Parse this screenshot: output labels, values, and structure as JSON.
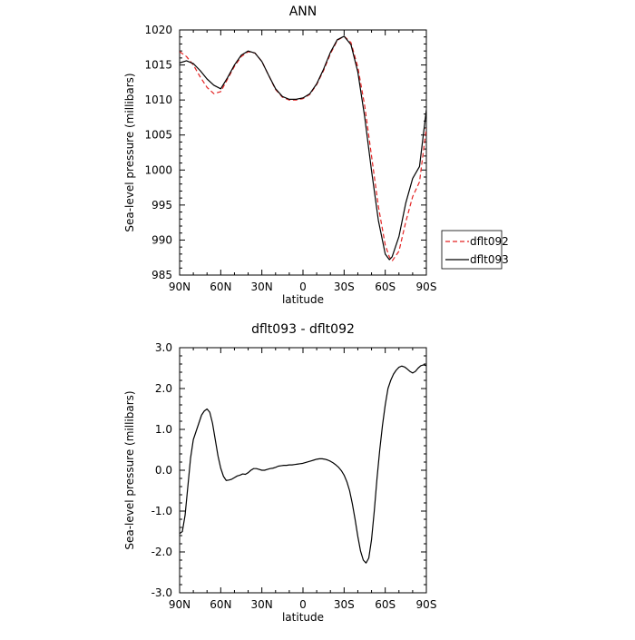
{
  "chart_data": [
    {
      "type": "line",
      "title": "ANN",
      "xlabel": "latitude",
      "ylabel": "Sea-level pressure (millibars)",
      "xlim": [
        90,
        -90
      ],
      "ylim": [
        985,
        1020
      ],
      "xticks": [
        90,
        60,
        30,
        0,
        -30,
        -60,
        -90
      ],
      "xtick_labels": [
        "90N",
        "60N",
        "30N",
        "0",
        "30S",
        "60S",
        "90S"
      ],
      "yticks": [
        985,
        990,
        995,
        1000,
        1005,
        1010,
        1015,
        1020
      ],
      "ytick_labels": [
        "985",
        "990",
        "995",
        "1000",
        "1005",
        "1010",
        "1015",
        "1020"
      ],
      "legend_position": "outside-right",
      "series": [
        {
          "name": "dflt092",
          "color": "#e32222",
          "style": "dashed",
          "x": [
            90,
            85,
            80,
            75,
            70,
            65,
            60,
            55,
            50,
            45,
            40,
            35,
            30,
            25,
            20,
            15,
            10,
            5,
            0,
            -5,
            -10,
            -15,
            -20,
            -25,
            -30,
            -35,
            -40,
            -45,
            -50,
            -55,
            -60,
            -63,
            -65,
            -70,
            -75,
            -80,
            -85,
            -90
          ],
          "y": [
            1016.9,
            1016.2,
            1015.0,
            1013.3,
            1011.8,
            1010.9,
            1011.2,
            1013.0,
            1014.8,
            1016.2,
            1016.9,
            1016.7,
            1015.5,
            1013.5,
            1011.5,
            1010.4,
            1010.0,
            1010.0,
            1010.2,
            1010.8,
            1012.2,
            1014.2,
            1016.6,
            1018.5,
            1019.1,
            1018.2,
            1014.7,
            1009.2,
            1002.0,
            994.8,
            989.3,
            987.6,
            987.0,
            988.4,
            992.6,
            996.2,
            998.3,
            1006.0
          ]
        },
        {
          "name": "dflt093",
          "color": "#000000",
          "style": "solid",
          "x": [
            90,
            85,
            80,
            75,
            70,
            65,
            60,
            55,
            50,
            45,
            40,
            35,
            30,
            25,
            20,
            15,
            10,
            5,
            0,
            -5,
            -10,
            -15,
            -20,
            -25,
            -30,
            -35,
            -40,
            -45,
            -50,
            -55,
            -60,
            -63,
            -65,
            -70,
            -75,
            -80,
            -85,
            -90
          ],
          "y": [
            1015.3,
            1015.6,
            1015.2,
            1014.2,
            1013.0,
            1012.1,
            1011.6,
            1013.2,
            1015.0,
            1016.4,
            1017.0,
            1016.7,
            1015.5,
            1013.5,
            1011.6,
            1010.5,
            1010.1,
            1010.1,
            1010.3,
            1010.9,
            1012.3,
            1014.4,
            1016.8,
            1018.6,
            1019.1,
            1017.9,
            1014.0,
            1007.6,
            999.9,
            992.8,
            988.0,
            987.2,
            987.6,
            990.5,
            995.3,
            998.8,
            1000.5,
            1008.6
          ]
        }
      ]
    },
    {
      "type": "line",
      "title": "dflt093 - dflt092",
      "xlabel": "latitude",
      "ylabel": "Sea-level pressure (millibars)",
      "xlim": [
        90,
        -90
      ],
      "ylim": [
        -3.0,
        3.0
      ],
      "xticks": [
        90,
        60,
        30,
        0,
        -30,
        -60,
        -90
      ],
      "xtick_labels": [
        "90N",
        "60N",
        "30N",
        "0",
        "30S",
        "60S",
        "90S"
      ],
      "yticks": [
        -3.0,
        -2.0,
        -1.0,
        0.0,
        1.0,
        2.0,
        3.0
      ],
      "ytick_labels": [
        "-3.0",
        "-2.0",
        "-1.0",
        "0.0",
        "1.0",
        "2.0",
        "3.0"
      ],
      "series": [
        {
          "color": "#000000",
          "style": "solid",
          "x": [
            90,
            88,
            86,
            84,
            82,
            80,
            78,
            76,
            74,
            72,
            70,
            68,
            66,
            64,
            62,
            60,
            58,
            56,
            54,
            52,
            50,
            48,
            46,
            44,
            42,
            40,
            38,
            36,
            34,
            32,
            30,
            28,
            26,
            24,
            22,
            20,
            18,
            16,
            14,
            12,
            10,
            8,
            6,
            4,
            2,
            0,
            -2,
            -4,
            -6,
            -8,
            -10,
            -12,
            -14,
            -16,
            -18,
            -20,
            -22,
            -24,
            -26,
            -28,
            -30,
            -32,
            -34,
            -36,
            -38,
            -40,
            -42,
            -44,
            -46,
            -48,
            -50,
            -52,
            -54,
            -56,
            -58,
            -60,
            -62,
            -64,
            -66,
            -68,
            -70,
            -72,
            -74,
            -76,
            -78,
            -80,
            -82,
            -84,
            -86,
            -88,
            -90
          ],
          "y": [
            -1.55,
            -1.5,
            -1.1,
            -0.4,
            0.3,
            0.75,
            0.95,
            1.15,
            1.35,
            1.45,
            1.5,
            1.42,
            1.15,
            0.75,
            0.35,
            0.05,
            -0.15,
            -0.25,
            -0.24,
            -0.22,
            -0.18,
            -0.14,
            -0.12,
            -0.09,
            -0.1,
            -0.06,
            0.0,
            0.04,
            0.04,
            0.02,
            0.0,
            0.0,
            0.02,
            0.04,
            0.05,
            0.07,
            0.1,
            0.11,
            0.12,
            0.12,
            0.13,
            0.13,
            0.14,
            0.15,
            0.16,
            0.17,
            0.19,
            0.21,
            0.23,
            0.25,
            0.27,
            0.28,
            0.28,
            0.27,
            0.25,
            0.22,
            0.18,
            0.13,
            0.07,
            -0.01,
            -0.12,
            -0.28,
            -0.5,
            -0.82,
            -1.2,
            -1.62,
            -1.98,
            -2.2,
            -2.27,
            -2.15,
            -1.7,
            -1.0,
            -0.2,
            0.5,
            1.1,
            1.6,
            2.0,
            2.2,
            2.35,
            2.45,
            2.52,
            2.55,
            2.53,
            2.48,
            2.42,
            2.38,
            2.42,
            2.5,
            2.56,
            2.58,
            2.56
          ]
        }
      ]
    }
  ]
}
